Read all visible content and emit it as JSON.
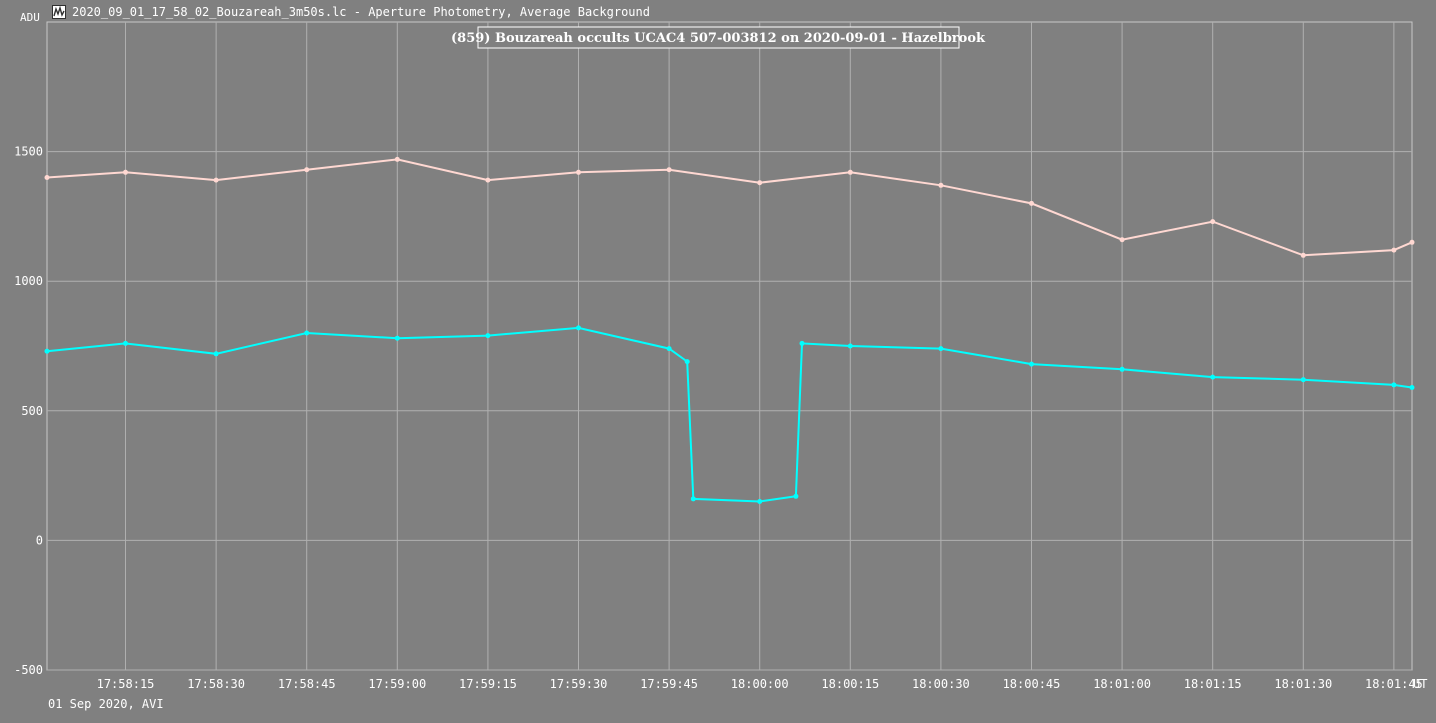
{
  "window": {
    "title": "2020_09_01_17_58_02_Bouzareah_3m50s.lc - Aperture Photometry, Average Background",
    "icon": "lightcurve-app-icon"
  },
  "footer": {
    "note": "01 Sep 2020, AVI"
  },
  "colors": {
    "background": "#808080",
    "grid": "#b0b0b0",
    "target": "#00ffff",
    "comparison": "#ffd8d2"
  },
  "chart_data": {
    "type": "line",
    "title": "(859) Bouzareah occults UCAC4 507-003812 on 2020-09-01 - Hazelbrook",
    "ylabel": "ADU",
    "xlabel": "UT",
    "ylim": [
      -500,
      2000
    ],
    "xlim": [
      "17:58:02",
      "18:01:48"
    ],
    "y_ticks": [
      -500,
      0,
      500,
      1000,
      1500
    ],
    "x_ticks": [
      "17:58:15",
      "17:58:30",
      "17:58:45",
      "17:59:00",
      "17:59:15",
      "17:59:30",
      "17:59:45",
      "18:00:00",
      "18:00:15",
      "18:00:30",
      "18:00:45",
      "18:01:00",
      "18:01:15",
      "18:01:30",
      "18:01:45"
    ],
    "grid": true,
    "series": [
      {
        "color": "#ffd8d2",
        "x": [
          "17:58:02",
          "17:58:15",
          "17:58:30",
          "17:58:45",
          "17:59:00",
          "17:59:15",
          "17:59:30",
          "17:59:45",
          "18:00:00",
          "18:00:15",
          "18:00:30",
          "18:00:45",
          "18:01:00",
          "18:01:15",
          "18:01:30",
          "18:01:45",
          "18:01:48"
        ],
        "values": [
          1400,
          1420,
          1390,
          1430,
          1470,
          1390,
          1420,
          1430,
          1380,
          1420,
          1370,
          1300,
          1160,
          1230,
          1100,
          1120,
          1150
        ]
      },
      {
        "color": "#00ffff",
        "x": [
          "17:58:02",
          "17:58:15",
          "17:58:30",
          "17:58:45",
          "17:59:00",
          "17:59:15",
          "17:59:30",
          "17:59:45",
          "17:59:48",
          "17:59:49",
          "18:00:00",
          "18:00:06",
          "18:00:07",
          "18:00:15",
          "18:00:30",
          "18:00:45",
          "18:01:00",
          "18:01:15",
          "18:01:30",
          "18:01:45",
          "18:01:48"
        ],
        "values": [
          730,
          760,
          720,
          800,
          780,
          790,
          820,
          740,
          690,
          160,
          150,
          170,
          760,
          750,
          740,
          680,
          660,
          630,
          620,
          600,
          590
        ]
      }
    ]
  }
}
